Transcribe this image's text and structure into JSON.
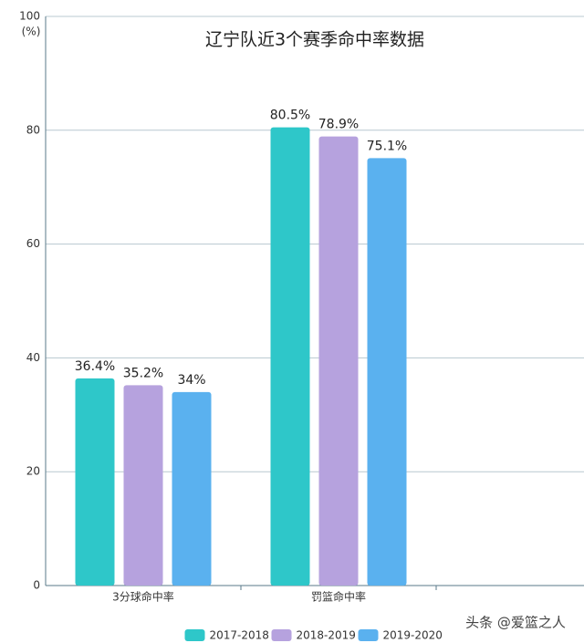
{
  "chart_data": {
    "type": "bar",
    "title": "辽宁队近3个赛季命中率数据",
    "y_label": "(%)",
    "categories": [
      "3分球命中率",
      "罚篮命中率",
      null
    ],
    "series": [
      {
        "name": "2017-2018",
        "color": "#2ec7c9",
        "values": [
          36.4,
          80.5,
          null
        ],
        "value_labels": [
          "36.4%",
          "80.5%",
          null
        ]
      },
      {
        "name": "2018-2019",
        "color": "#b6a2de",
        "values": [
          35.2,
          78.9,
          null
        ],
        "value_labels": [
          "35.2%",
          "78.9%",
          null
        ]
      },
      {
        "name": "2019-2020",
        "color": "#5ab1ef",
        "values": [
          34,
          75.1,
          null
        ],
        "value_labels": [
          "34%",
          "75.1%",
          null
        ]
      }
    ],
    "ylim": [
      0,
      100
    ],
    "yticks": [
      0,
      20,
      40,
      60,
      80,
      100
    ],
    "grid": true,
    "legend": "bottom",
    "watermark": "头条 @爱篮之人"
  }
}
